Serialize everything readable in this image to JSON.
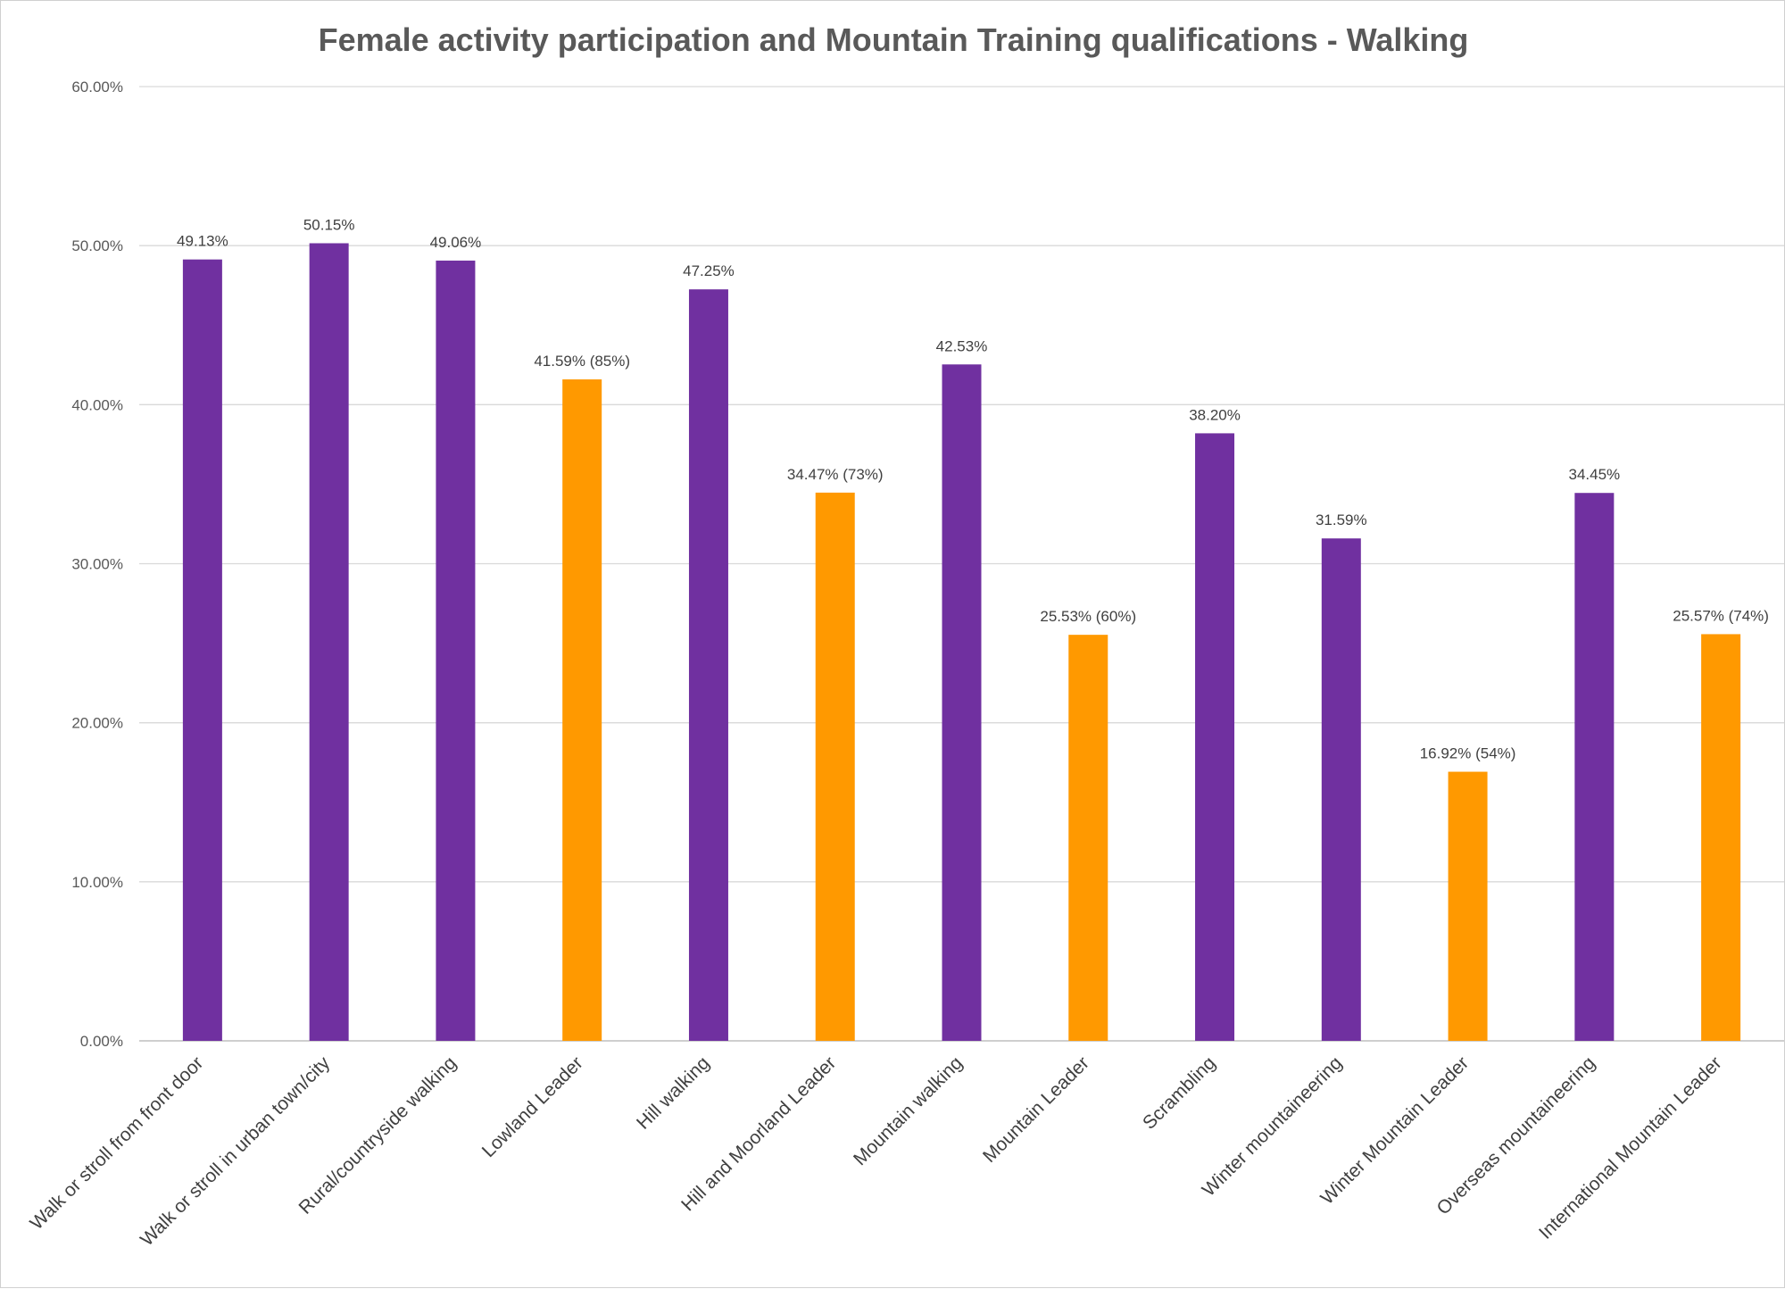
{
  "chart_data": {
    "type": "bar",
    "title": "Female activity participation and Mountain Training qualifications - Walking",
    "xlabel": "",
    "ylabel": "",
    "ylim": [
      0,
      60
    ],
    "y_ticks": [
      "0.00%",
      "10.00%",
      "20.00%",
      "30.00%",
      "40.00%",
      "50.00%",
      "60.00%"
    ],
    "grid": true,
    "colors": {
      "activity": "#7030a0",
      "qualification": "#ff9900"
    },
    "categories": [
      "Walk or stroll from front door",
      "Walk or stroll in urban town/city",
      "Rural/countryside walking",
      "Lowland Leader",
      "Hill walking",
      "Hill and Moorland Leader",
      "Mountain walking",
      "Mountain Leader",
      "Scrambling",
      "Winter mountaineering",
      "Winter Mountain Leader",
      "Overseas mountaineering",
      "International Mountain Leader"
    ],
    "values": [
      49.13,
      50.15,
      49.06,
      41.59,
      47.25,
      34.47,
      42.53,
      25.53,
      38.2,
      31.59,
      16.92,
      34.45,
      25.57
    ],
    "kinds": [
      "activity",
      "activity",
      "activity",
      "qualification",
      "activity",
      "qualification",
      "activity",
      "qualification",
      "activity",
      "activity",
      "qualification",
      "activity",
      "qualification"
    ],
    "data_labels": [
      "49.13%",
      "50.15%",
      "49.06%",
      "41.59% (85%)",
      "47.25%",
      "34.47% (73%)",
      "42.53%",
      "25.53% (60%)",
      "38.20%",
      "31.59%",
      "16.92% (54%)",
      "34.45%",
      "25.57% (74%)"
    ]
  }
}
